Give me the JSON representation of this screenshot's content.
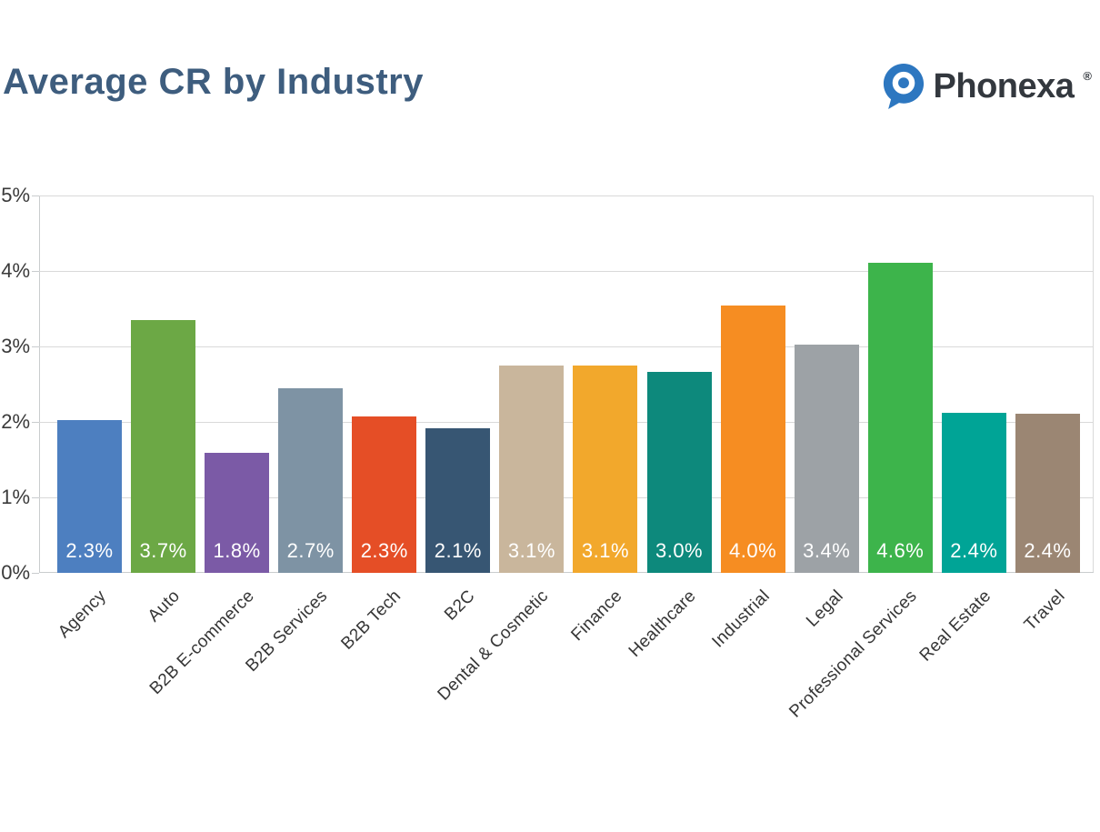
{
  "header": {
    "title": "Average CR by Industry",
    "brand": "Phonexa",
    "registered": "®",
    "title_color": "#3e5d7e",
    "brand_color": "#33383e",
    "logo_blue": "#2d77c0"
  },
  "chart_data": {
    "type": "bar",
    "title": "Average CR by Industry",
    "categories": [
      "Agency",
      "Auto",
      "B2B E-commerce",
      "B2B Services",
      "B2B Tech",
      "B2C",
      "Dental & Cosmetic",
      "Finance",
      "Healthcare",
      "Industrial",
      "Legal",
      "Professional Services",
      "Real Estate",
      "Travel"
    ],
    "values": [
      2.3,
      3.7,
      1.8,
      2.7,
      2.3,
      2.1,
      3.1,
      3.1,
      3.0,
      4.0,
      3.4,
      4.6,
      2.4,
      2.4
    ],
    "value_labels": [
      "2.3%",
      "3.7%",
      "1.8%",
      "2.7%",
      "2.3%",
      "2.1%",
      "3.1%",
      "3.1%",
      "3.0%",
      "4.0%",
      "3.4%",
      "4.6%",
      "2.4%",
      "2.4%"
    ],
    "bar_colors": [
      "#4d7fc0",
      "#6ca845",
      "#7b5aa6",
      "#7e93a4",
      "#e54e26",
      "#375673",
      "#c9b69c",
      "#f2a82c",
      "#0d897c",
      "#f68d22",
      "#9da2a6",
      "#3db44b",
      "#00a496",
      "#9b8673"
    ],
    "visual_bar_heights_axis_pct": [
      2.02,
      3.35,
      1.59,
      2.44,
      2.07,
      1.92,
      2.75,
      2.75,
      2.66,
      3.54,
      3.02,
      4.11,
      2.12,
      2.11
    ],
    "y_axis_ticks": [
      "5%",
      "4%",
      "3%",
      "2%",
      "1%",
      "0%"
    ],
    "ylim": [
      0,
      5
    ],
    "xlabel": "",
    "ylabel": "",
    "grid": true,
    "legend": false,
    "value_label_color": "#ffffff",
    "axis_text_color": "#3a3a3a",
    "grid_color": "#d9d9d9"
  }
}
